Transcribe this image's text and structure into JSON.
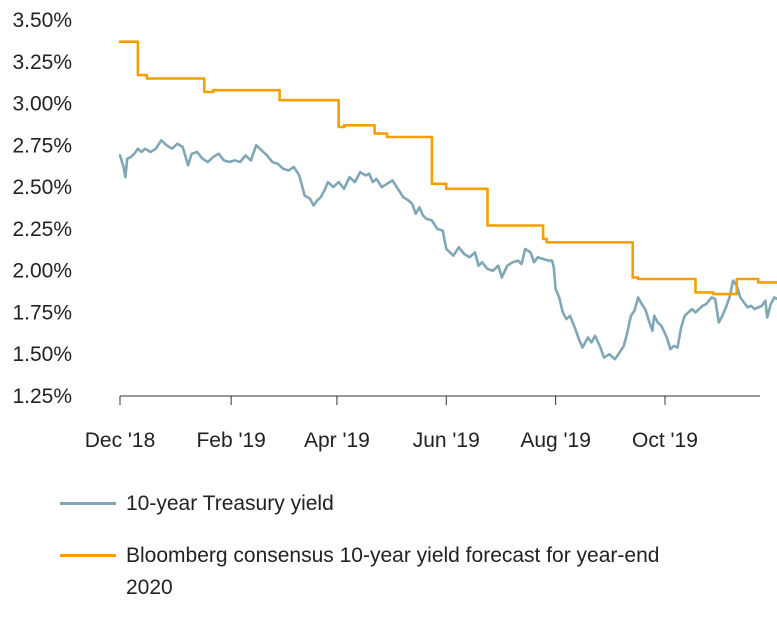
{
  "chart_data": {
    "type": "line",
    "title": "",
    "xlabel": "",
    "ylabel": "",
    "ylim": [
      1.25,
      3.5
    ],
    "yticks": [
      "1.25%",
      "1.50%",
      "1.75%",
      "2.00%",
      "2.25%",
      "2.50%",
      "2.75%",
      "3.00%",
      "3.25%",
      "3.50%"
    ],
    "ytick_values": [
      1.25,
      1.5,
      1.75,
      2.0,
      2.25,
      2.5,
      2.75,
      3.0,
      3.25,
      3.5
    ],
    "xlim": [
      "2018-12-01",
      "2019-11-23"
    ],
    "xticks": [
      {
        "label": "Dec '18",
        "date": "2018-12-01"
      },
      {
        "label": "Feb '19",
        "date": "2019-02-01"
      },
      {
        "label": "Apr '19",
        "date": "2019-04-01"
      },
      {
        "label": "Jun '19",
        "date": "2019-06-01"
      },
      {
        "label": "Aug '19",
        "date": "2019-08-01"
      },
      {
        "label": "Oct '19",
        "date": "2019-10-01"
      }
    ],
    "grid": false,
    "legend_position": "bottom",
    "series": [
      {
        "name": "10-year Treasury yield",
        "color": "#7fa7b5",
        "style": "line",
        "points": [
          [
            "2018-12-01",
            2.69
          ],
          [
            "2018-12-03",
            2.62
          ],
          [
            "2018-12-04",
            2.56
          ],
          [
            "2018-12-05",
            2.67
          ],
          [
            "2018-12-07",
            2.68
          ],
          [
            "2018-12-09",
            2.7
          ],
          [
            "2018-12-11",
            2.73
          ],
          [
            "2018-12-13",
            2.71
          ],
          [
            "2018-12-15",
            2.73
          ],
          [
            "2018-12-18",
            2.71
          ],
          [
            "2018-12-21",
            2.73
          ],
          [
            "2018-12-24",
            2.78
          ],
          [
            "2018-12-27",
            2.75
          ],
          [
            "2018-12-30",
            2.73
          ],
          [
            "2019-01-02",
            2.76
          ],
          [
            "2019-01-05",
            2.74
          ],
          [
            "2019-01-08",
            2.63
          ],
          [
            "2019-01-10",
            2.7
          ],
          [
            "2019-01-13",
            2.71
          ],
          [
            "2019-01-16",
            2.67
          ],
          [
            "2019-01-19",
            2.65
          ],
          [
            "2019-01-22",
            2.68
          ],
          [
            "2019-01-25",
            2.7
          ],
          [
            "2019-01-28",
            2.66
          ],
          [
            "2019-01-31",
            2.65
          ],
          [
            "2019-02-03",
            2.66
          ],
          [
            "2019-02-06",
            2.65
          ],
          [
            "2019-02-09",
            2.69
          ],
          [
            "2019-02-12",
            2.66
          ],
          [
            "2019-02-15",
            2.75
          ],
          [
            "2019-02-18",
            2.72
          ],
          [
            "2019-02-21",
            2.69
          ],
          [
            "2019-02-24",
            2.65
          ],
          [
            "2019-02-27",
            2.64
          ],
          [
            "2019-03-02",
            2.61
          ],
          [
            "2019-03-05",
            2.6
          ],
          [
            "2019-03-08",
            2.62
          ],
          [
            "2019-03-11",
            2.57
          ],
          [
            "2019-03-14",
            2.45
          ],
          [
            "2019-03-17",
            2.43
          ],
          [
            "2019-03-19",
            2.39
          ],
          [
            "2019-03-21",
            2.42
          ],
          [
            "2019-03-23",
            2.44
          ],
          [
            "2019-03-25",
            2.48
          ],
          [
            "2019-03-27",
            2.53
          ],
          [
            "2019-03-30",
            2.5
          ],
          [
            "2019-04-02",
            2.53
          ],
          [
            "2019-04-05",
            2.49
          ],
          [
            "2019-04-08",
            2.56
          ],
          [
            "2019-04-11",
            2.53
          ],
          [
            "2019-04-14",
            2.59
          ],
          [
            "2019-04-17",
            2.57
          ],
          [
            "2019-04-19",
            2.58
          ],
          [
            "2019-04-21",
            2.53
          ],
          [
            "2019-04-23",
            2.55
          ],
          [
            "2019-04-26",
            2.5
          ],
          [
            "2019-04-29",
            2.52
          ],
          [
            "2019-05-02",
            2.54
          ],
          [
            "2019-05-05",
            2.49
          ],
          [
            "2019-05-08",
            2.44
          ],
          [
            "2019-05-11",
            2.42
          ],
          [
            "2019-05-13",
            2.4
          ],
          [
            "2019-05-15",
            2.34
          ],
          [
            "2019-05-17",
            2.38
          ],
          [
            "2019-05-19",
            2.33
          ],
          [
            "2019-05-21",
            2.31
          ],
          [
            "2019-05-24",
            2.3
          ],
          [
            "2019-05-27",
            2.25
          ],
          [
            "2019-05-30",
            2.24
          ],
          [
            "2019-06-01",
            2.13
          ],
          [
            "2019-06-03",
            2.11
          ],
          [
            "2019-06-05",
            2.09
          ],
          [
            "2019-06-08",
            2.14
          ],
          [
            "2019-06-11",
            2.1
          ],
          [
            "2019-06-14",
            2.08
          ],
          [
            "2019-06-17",
            2.11
          ],
          [
            "2019-06-19",
            2.03
          ],
          [
            "2019-06-21",
            2.05
          ],
          [
            "2019-06-24",
            2.01
          ],
          [
            "2019-06-27",
            2.0
          ],
          [
            "2019-06-30",
            2.03
          ],
          [
            "2019-07-02",
            1.96
          ],
          [
            "2019-07-05",
            2.03
          ],
          [
            "2019-07-08",
            2.05
          ],
          [
            "2019-07-11",
            2.06
          ],
          [
            "2019-07-13",
            2.04
          ],
          [
            "2019-07-15",
            2.13
          ],
          [
            "2019-07-18",
            2.11
          ],
          [
            "2019-07-20",
            2.05
          ],
          [
            "2019-07-22",
            2.08
          ],
          [
            "2019-07-25",
            2.07
          ],
          [
            "2019-07-28",
            2.06
          ],
          [
            "2019-07-30",
            2.06
          ],
          [
            "2019-07-31",
            2.02
          ],
          [
            "2019-08-01",
            1.89
          ],
          [
            "2019-08-03",
            1.84
          ],
          [
            "2019-08-05",
            1.75
          ],
          [
            "2019-08-07",
            1.71
          ],
          [
            "2019-08-09",
            1.73
          ],
          [
            "2019-08-12",
            1.65
          ],
          [
            "2019-08-14",
            1.59
          ],
          [
            "2019-08-16",
            1.54
          ],
          [
            "2019-08-19",
            1.6
          ],
          [
            "2019-08-21",
            1.57
          ],
          [
            "2019-08-23",
            1.61
          ],
          [
            "2019-08-26",
            1.54
          ],
          [
            "2019-08-28",
            1.48
          ],
          [
            "2019-08-31",
            1.5
          ],
          [
            "2019-09-03",
            1.47
          ],
          [
            "2019-09-05",
            1.5
          ],
          [
            "2019-09-08",
            1.55
          ],
          [
            "2019-09-10",
            1.63
          ],
          [
            "2019-09-12",
            1.73
          ],
          [
            "2019-09-14",
            1.76
          ],
          [
            "2019-09-16",
            1.84
          ],
          [
            "2019-09-18",
            1.8
          ],
          [
            "2019-09-20",
            1.77
          ],
          [
            "2019-09-22",
            1.7
          ],
          [
            "2019-09-24",
            1.64
          ],
          [
            "2019-09-25",
            1.73
          ],
          [
            "2019-09-27",
            1.69
          ],
          [
            "2019-09-29",
            1.67
          ],
          [
            "2019-10-02",
            1.6
          ],
          [
            "2019-10-04",
            1.53
          ],
          [
            "2019-10-06",
            1.55
          ],
          [
            "2019-10-08",
            1.54
          ],
          [
            "2019-10-10",
            1.66
          ],
          [
            "2019-10-12",
            1.73
          ],
          [
            "2019-10-14",
            1.75
          ],
          [
            "2019-10-16",
            1.77
          ],
          [
            "2019-10-18",
            1.75
          ],
          [
            "2019-10-20",
            1.77
          ],
          [
            "2019-10-22",
            1.79
          ],
          [
            "2019-10-24",
            1.8
          ],
          [
            "2019-10-27",
            1.84
          ],
          [
            "2019-10-29",
            1.83
          ],
          [
            "2019-10-31",
            1.69
          ],
          [
            "2019-11-02",
            1.73
          ],
          [
            "2019-11-04",
            1.78
          ],
          [
            "2019-11-06",
            1.84
          ],
          [
            "2019-11-08",
            1.94
          ],
          [
            "2019-11-10",
            1.91
          ],
          [
            "2019-11-12",
            1.84
          ],
          [
            "2019-11-14",
            1.81
          ],
          [
            "2019-11-16",
            1.78
          ],
          [
            "2019-11-18",
            1.79
          ],
          [
            "2019-11-20",
            1.77
          ],
          [
            "2019-11-22",
            1.78
          ],
          [
            "2019-11-24",
            1.79
          ],
          [
            "2019-11-26",
            1.82
          ],
          [
            "2019-11-27",
            1.72
          ],
          [
            "2019-11-29",
            1.8
          ],
          [
            "2019-12-01",
            1.84
          ],
          [
            "2019-12-03",
            1.83
          ],
          [
            "2019-12-05",
            1.81
          ],
          [
            "2019-12-06",
            1.88
          ],
          [
            "2019-12-07",
            1.8
          ],
          [
            "2019-12-08",
            1.9
          ]
        ]
      },
      {
        "name": "Bloomberg consensus 10-year yield forecast for year-end 2020",
        "color": "#f5a000",
        "style": "step",
        "points": [
          [
            "2018-12-01",
            3.37
          ],
          [
            "2018-12-11",
            3.37
          ],
          [
            "2018-12-11",
            3.17
          ],
          [
            "2018-12-16",
            3.17
          ],
          [
            "2018-12-16",
            3.15
          ],
          [
            "2019-01-17",
            3.15
          ],
          [
            "2019-01-17",
            3.07
          ],
          [
            "2019-01-22",
            3.07
          ],
          [
            "2019-01-22",
            3.08
          ],
          [
            "2019-02-28",
            3.08
          ],
          [
            "2019-02-28",
            3.02
          ],
          [
            "2019-04-02",
            3.02
          ],
          [
            "2019-04-02",
            2.86
          ],
          [
            "2019-04-05",
            2.86
          ],
          [
            "2019-04-05",
            2.87
          ],
          [
            "2019-04-22",
            2.87
          ],
          [
            "2019-04-22",
            2.82
          ],
          [
            "2019-04-29",
            2.82
          ],
          [
            "2019-04-29",
            2.8
          ],
          [
            "2019-05-24",
            2.8
          ],
          [
            "2019-05-24",
            2.52
          ],
          [
            "2019-06-01",
            2.52
          ],
          [
            "2019-06-01",
            2.49
          ],
          [
            "2019-06-24",
            2.49
          ],
          [
            "2019-06-24",
            2.27
          ],
          [
            "2019-07-25",
            2.27
          ],
          [
            "2019-07-25",
            2.19
          ],
          [
            "2019-07-27",
            2.19
          ],
          [
            "2019-07-27",
            2.17
          ],
          [
            "2019-09-13",
            2.17
          ],
          [
            "2019-09-13",
            1.96
          ],
          [
            "2019-09-16",
            1.96
          ],
          [
            "2019-09-16",
            1.95
          ],
          [
            "2019-10-18",
            1.95
          ],
          [
            "2019-10-18",
            1.87
          ],
          [
            "2019-10-28",
            1.87
          ],
          [
            "2019-10-28",
            1.86
          ],
          [
            "2019-11-10",
            1.86
          ],
          [
            "2019-11-10",
            1.95
          ],
          [
            "2019-11-22",
            1.95
          ],
          [
            "2019-11-22",
            1.93
          ],
          [
            "2019-12-08",
            1.93
          ]
        ]
      }
    ]
  }
}
